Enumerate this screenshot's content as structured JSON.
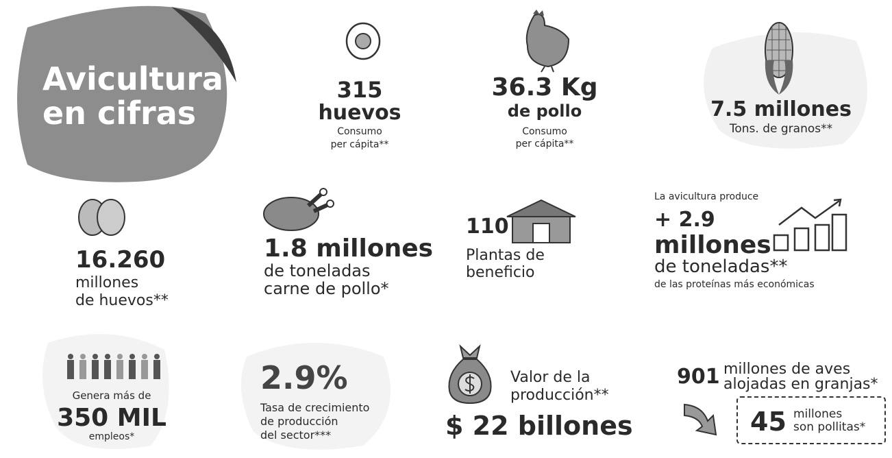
{
  "title": [
    "Avicultura",
    "en cifras"
  ],
  "eggs": [
    "315",
    "huevos",
    "Consumo",
    "per cápita**"
  ],
  "chicken": [
    "36.3 Kg",
    "de pollo",
    "Consumo",
    "per cápita**"
  ],
  "grains": [
    "7.5 millones",
    "Tons. de granos**"
  ],
  "egg_total": [
    "16.260",
    "millones",
    "de huevos**"
  ],
  "meat": [
    "1.8 millones",
    "de toneladas",
    "carne de pollo*"
  ],
  "plants": [
    "110",
    "Plantas de",
    "beneficio"
  ],
  "protein": [
    "La avicultura produce",
    "+ 2.9",
    "millones",
    "de toneladas**",
    "de las proteínas más económicas"
  ],
  "jobs": [
    "Genera más de",
    "350 MIL",
    "empleos*"
  ],
  "growth": [
    "2.9%",
    "Tasa de crecimiento",
    "de producción",
    "del sector***"
  ],
  "value": [
    "Valor de la",
    "producción**",
    "$ 22 billones"
  ],
  "birds": [
    "901",
    "millones de aves",
    "alojadas en granjas*",
    "45",
    "millones",
    "son pollitas*"
  ]
}
